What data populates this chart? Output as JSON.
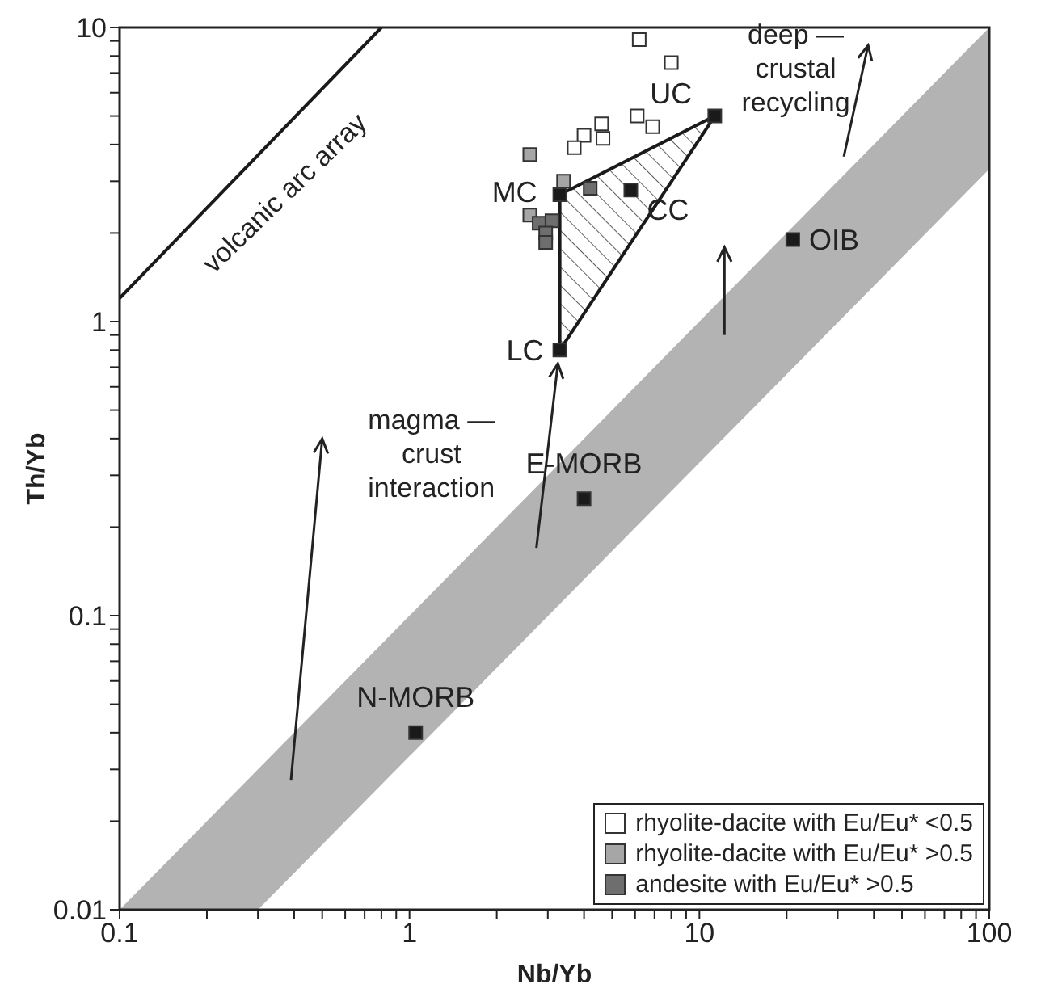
{
  "chart_data": {
    "type": "scatter",
    "xlabel": "Nb/Yb",
    "ylabel": "Th/Yb",
    "log": "xy",
    "grid": false,
    "legend": "bottom right",
    "marker": "square",
    "xlim": [
      0.1,
      100
    ],
    "ylim": [
      0.01,
      10
    ],
    "xticks": [
      0.1,
      {
        "value": 0.2,
        "label": null
      },
      {
        "value": 0.3,
        "label": null
      },
      {
        "value": 0.4,
        "label": null
      },
      {
        "value": 0.5,
        "label": null
      },
      {
        "value": 0.6,
        "label": null
      },
      {
        "value": 0.7,
        "label": null
      },
      {
        "value": 0.8,
        "label": null
      },
      {
        "value": 0.9,
        "label": null
      },
      1,
      {
        "value": 2,
        "label": null
      },
      {
        "value": 3,
        "label": null
      },
      {
        "value": 4,
        "label": null
      },
      {
        "value": 5,
        "label": null
      },
      {
        "value": 6,
        "label": null
      },
      {
        "value": 7,
        "label": null
      },
      {
        "value": 8,
        "label": null
      },
      {
        "value": 9,
        "label": null
      },
      10,
      {
        "value": 20,
        "label": null
      },
      {
        "value": 30,
        "label": null
      },
      {
        "value": 40,
        "label": null
      },
      {
        "value": 50,
        "label": null
      },
      {
        "value": 60,
        "label": null
      },
      {
        "value": 70,
        "label": null
      },
      {
        "value": 80,
        "label": null
      },
      {
        "value": 90,
        "label": null
      },
      100
    ],
    "yticks": [
      0.01,
      {
        "value": 0.02,
        "label": null
      },
      {
        "value": 0.03,
        "label": null
      },
      {
        "value": 0.04,
        "label": null
      },
      {
        "value": 0.05,
        "label": null
      },
      {
        "value": 0.06,
        "label": null
      },
      {
        "value": 0.07,
        "label": null
      },
      {
        "value": 0.08,
        "label": null
      },
      {
        "value": 0.09,
        "label": null
      },
      0.1,
      {
        "value": 0.2,
        "label": null
      },
      {
        "value": 0.3,
        "label": null
      },
      {
        "value": 0.4,
        "label": null
      },
      {
        "value": 0.5,
        "label": null
      },
      {
        "value": 0.6,
        "label": null
      },
      {
        "value": 0.7,
        "label": null
      },
      {
        "value": 0.8,
        "label": null
      },
      {
        "value": 0.9,
        "label": null
      },
      1,
      {
        "value": 2,
        "label": null
      },
      {
        "value": 3,
        "label": null
      },
      {
        "value": 4,
        "label": null
      },
      {
        "value": 5,
        "label": null
      },
      {
        "value": 6,
        "label": null
      },
      {
        "value": 7,
        "label": null
      },
      {
        "value": 8,
        "label": null
      },
      {
        "value": 9,
        "label": null
      },
      10
    ],
    "series": [
      {
        "type": "area",
        "marker": "none",
        "color": "#b3b3b3",
        "x": [
          0.1,
          0.3,
          100
        ],
        "values": [
          null,
          null,
          null
        ],
        "lower": [
          0.01,
          0.01,
          3.3
        ],
        "upper": [
          0.01,
          0.03,
          10
        ]
      },
      {
        "type": "line",
        "marker": "none",
        "color": "#1a1a1a",
        "x": [
          0.1,
          0.8
        ],
        "values": [
          1.2,
          10
        ]
      },
      {
        "type": "line",
        "marker": "none",
        "color": "#1a1a1a",
        "x": [
          3.3,
          11.3
        ],
        "values": [
          2.7,
          5
        ]
      },
      {
        "type": "line",
        "marker": "none",
        "color": "#1a1a1a",
        "x": [
          3.3,
          11.3
        ],
        "values": [
          0.8,
          5
        ]
      },
      {
        "type": "scatter",
        "name": "rhyolite-dacite with Eu/Eu* <0.5",
        "color": "#ffffff",
        "x": [
          6.2,
          8.0,
          4.6,
          4.0,
          3.7,
          4.65,
          6.1,
          6.9
        ],
        "values": [
          9.1,
          7.6,
          4.7,
          4.3,
          3.9,
          4.2,
          5.0,
          4.6
        ]
      },
      {
        "type": "scatter",
        "name": "rhyolite-dacite with Eu/Eu* >0.5",
        "color": "#a6a6a6",
        "x": [
          2.6,
          3.4,
          2.6
        ],
        "values": [
          3.7,
          3.0,
          2.3
        ]
      },
      {
        "type": "scatter",
        "name": "andesite with Eu/Eu* >0.5",
        "color": "#6e6e6e",
        "x": [
          4.2,
          2.8,
          3.1,
          2.95,
          2.95
        ],
        "values": [
          2.84,
          2.16,
          2.2,
          2.0,
          1.86
        ]
      },
      {
        "type": "scatter",
        "color": "#1a1a1a",
        "x": [
          11.3,
          3.3,
          5.8,
          3.3,
          21,
          4.0,
          1.05
        ],
        "values": [
          5,
          2.7,
          2.8,
          0.8,
          1.9,
          0.25,
          0.04
        ]
      }
    ],
    "annotations": [
      {
        "text": "UC",
        "x": 11.3,
        "y": 5
      },
      {
        "text": "MC",
        "x": 3.3,
        "y": 2.7
      },
      {
        "text": "CC",
        "x": 5.8,
        "y": 2.8
      },
      {
        "text": "LC",
        "x": 3.3,
        "y": 0.8
      },
      {
        "text": "OIB",
        "x": 21,
        "y": 1.9
      },
      {
        "text": "E-MORB",
        "x": 4.0,
        "y": 0.25
      },
      {
        "text": "N-MORB",
        "x": 1.05,
        "y": 0.04
      },
      "volcanic arc array",
      "magma —\ncrust\ninteraction",
      "deep —\ncrustal\nrecycling"
    ]
  }
}
